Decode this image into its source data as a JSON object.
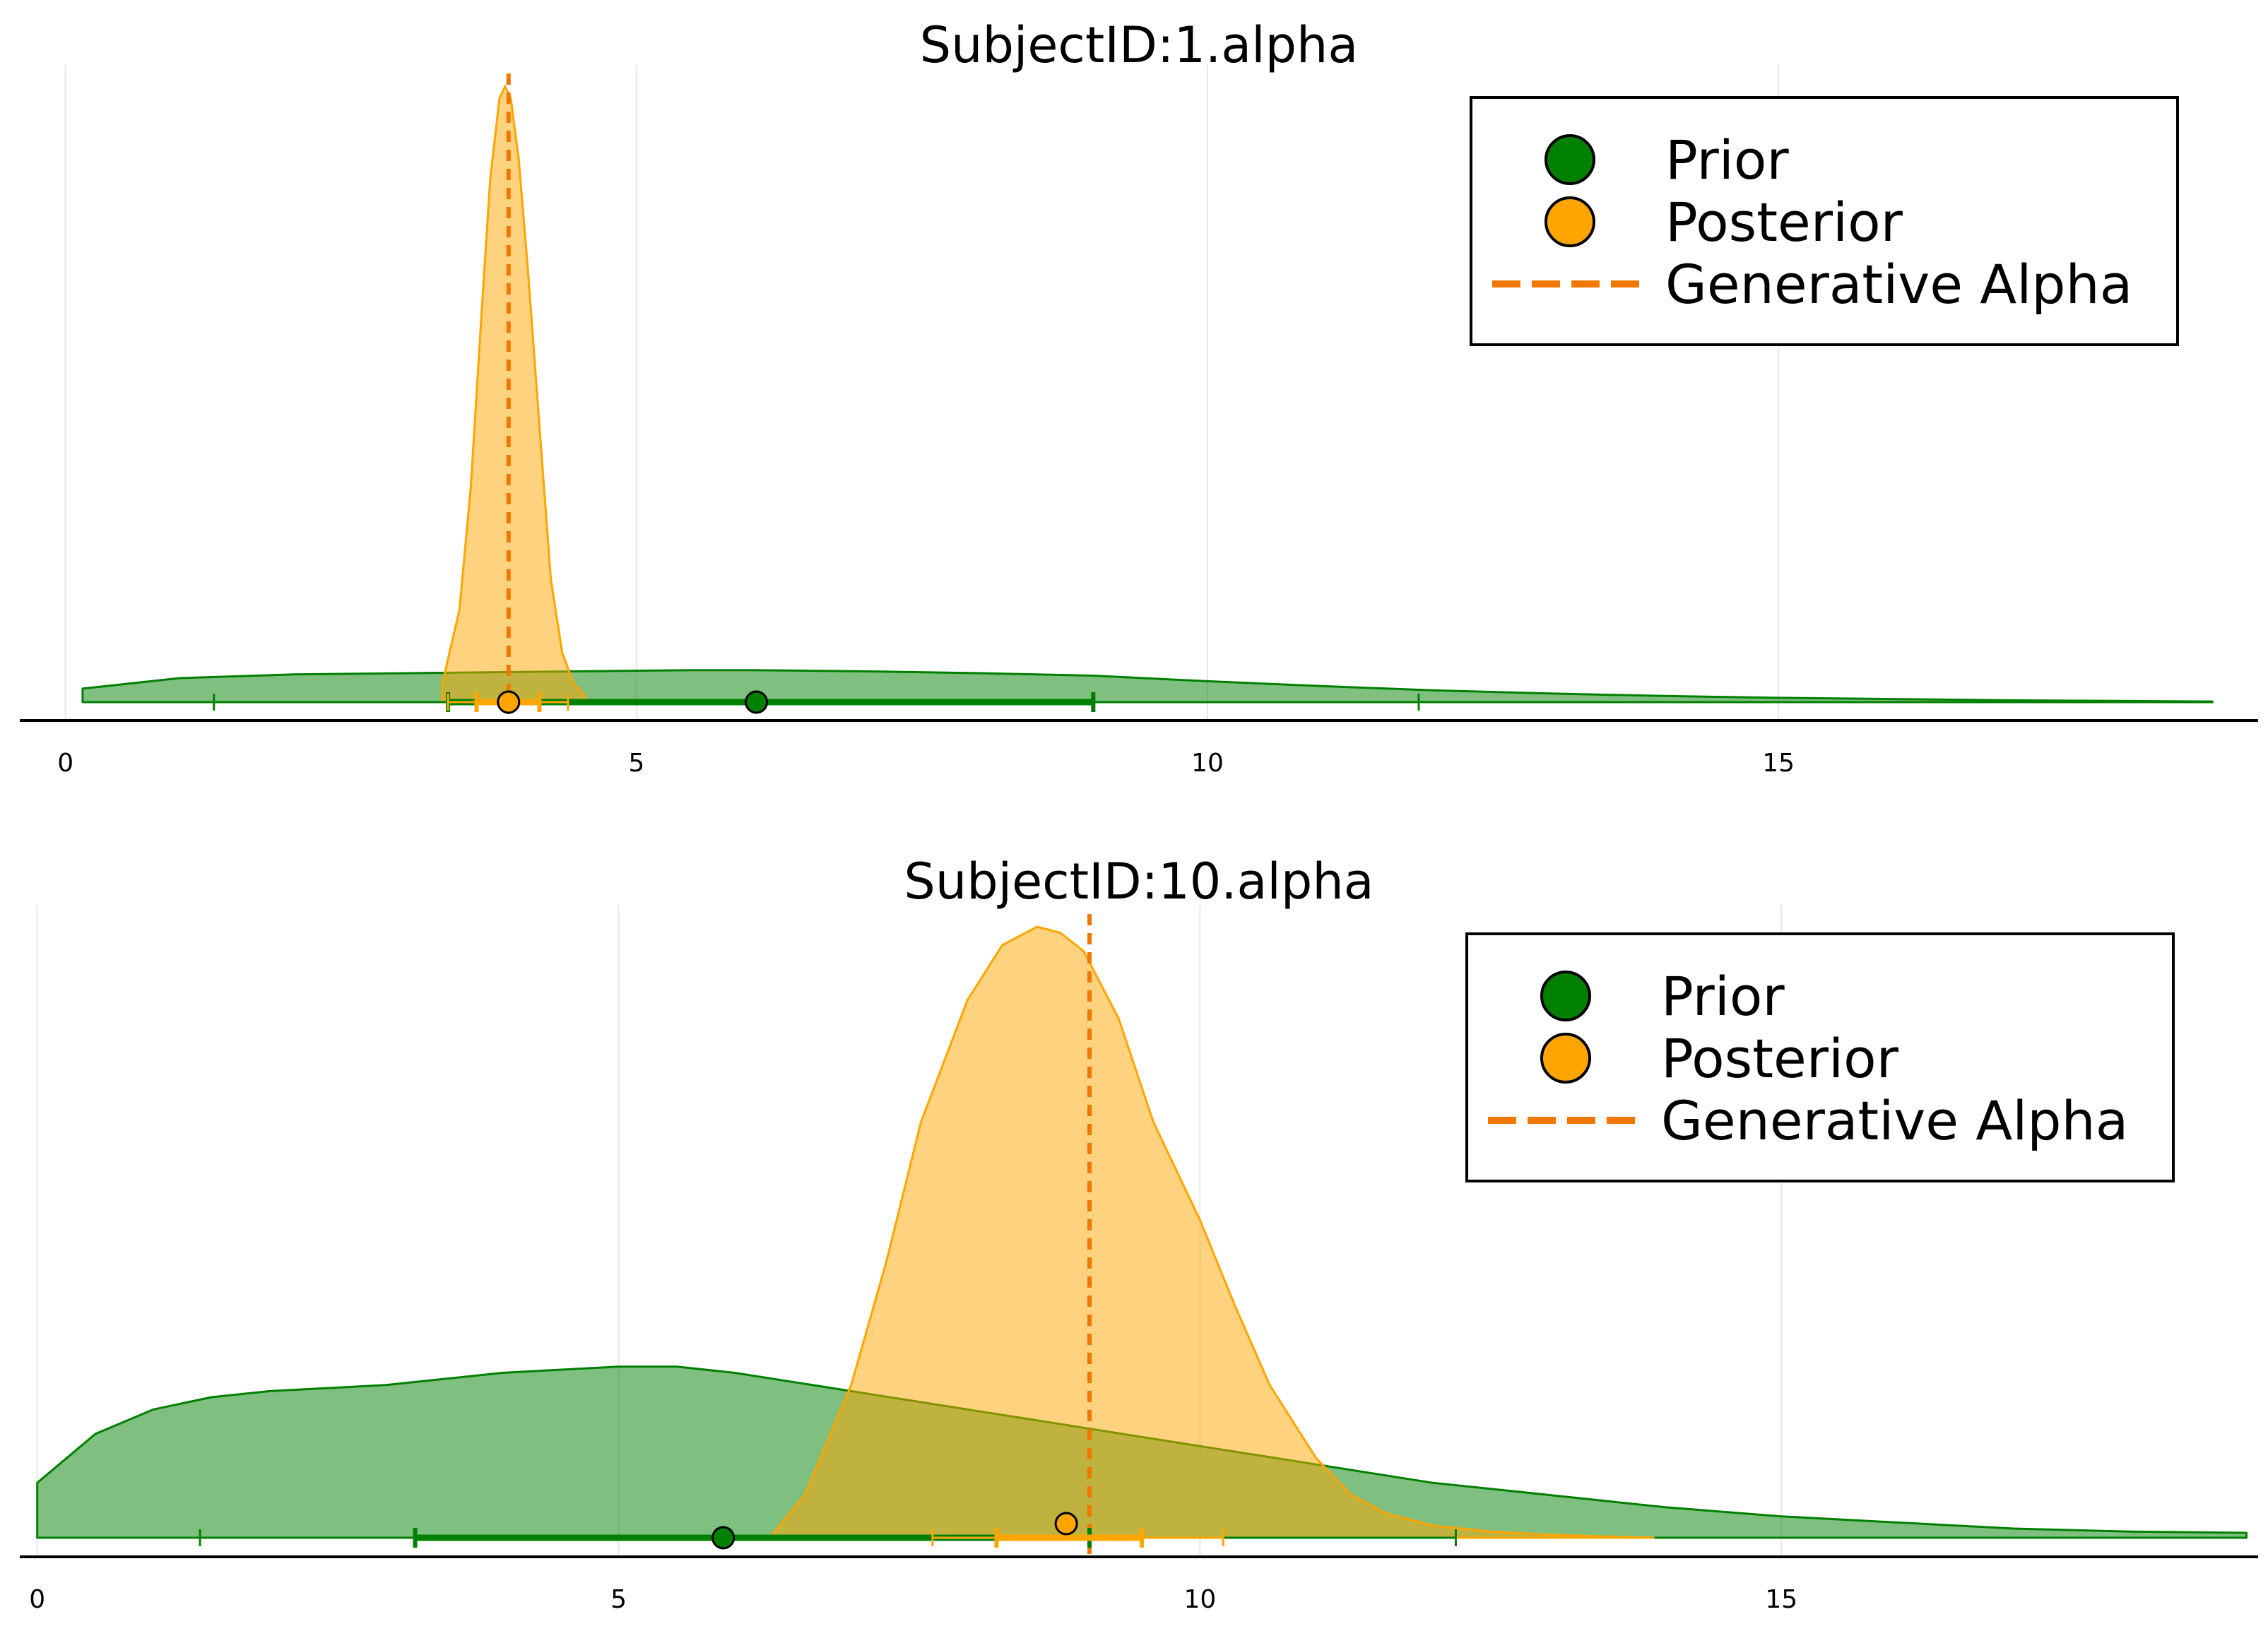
{
  "chart_data": [
    {
      "type": "area",
      "title": "SubjectID:1.alpha",
      "xlabel": "",
      "ylabel": "",
      "xlim": [
        -0.4,
        19.2
      ],
      "ylim": [
        0,
        1.0
      ],
      "x_ticks": [
        0,
        5,
        10,
        15
      ],
      "x_tick_labels": [
        "0",
        "5",
        "10",
        "15"
      ],
      "grid": true,
      "legend_position": "top-right",
      "legend": [
        {
          "label": "Prior",
          "marker": "circle",
          "color": "#008000"
        },
        {
          "label": "Posterior",
          "marker": "circle",
          "color": "#ffa500"
        },
        {
          "label": "Generative Alpha",
          "marker": "dashed-line",
          "color": "#f07800"
        }
      ],
      "series": [
        {
          "name": "Prior",
          "color": "#008000",
          "fill_opacity": 0.5,
          "density_x": [
            0.15,
            1.0,
            2.0,
            3.0,
            4.0,
            5.0,
            5.5,
            6.0,
            7.0,
            8.0,
            9.0,
            10.0,
            11.0,
            12.0,
            13.0,
            14.0,
            15.0,
            16.0,
            17.0,
            18.0,
            18.8
          ],
          "density_y": [
            0.022,
            0.039,
            0.045,
            0.047,
            0.049,
            0.051,
            0.052,
            0.052,
            0.05,
            0.047,
            0.043,
            0.034,
            0.026,
            0.019,
            0.014,
            0.01,
            0.007,
            0.005,
            0.003,
            0.002,
            0.001
          ],
          "point_estimate": 6.05,
          "inner_interval": [
            3.35,
            9.0
          ],
          "outer_interval": [
            1.3,
            11.85
          ]
        },
        {
          "name": "Posterior",
          "color": "#ffa500",
          "fill_opacity": 0.5,
          "density_x": [
            3.3,
            3.45,
            3.55,
            3.65,
            3.72,
            3.8,
            3.85,
            3.9,
            3.97,
            4.05,
            4.15,
            4.25,
            4.35,
            4.45,
            4.55
          ],
          "density_y": [
            0.03,
            0.15,
            0.35,
            0.65,
            0.85,
            0.98,
            1.0,
            0.98,
            0.88,
            0.7,
            0.45,
            0.2,
            0.08,
            0.03,
            0.01
          ],
          "point_estimate": 3.88,
          "inner_interval": [
            3.6,
            4.15
          ],
          "outer_interval": [
            3.35,
            4.4
          ]
        }
      ],
      "reference_line": {
        "name": "Generative Alpha",
        "x": 3.88,
        "style": "dashed",
        "color": "#f07800"
      }
    },
    {
      "type": "area",
      "title": "SubjectID:10.alpha",
      "xlabel": "",
      "ylabel": "",
      "xlim": [
        -0.15,
        19.1
      ],
      "ylim": [
        0,
        1.0
      ],
      "x_ticks": [
        0,
        5,
        10,
        15
      ],
      "x_tick_labels": [
        "0",
        "5",
        "10",
        "15"
      ],
      "grid": true,
      "legend_position": "top-right",
      "legend": [
        {
          "label": "Prior",
          "marker": "circle",
          "color": "#008000"
        },
        {
          "label": "Posterior",
          "marker": "circle",
          "color": "#ffa500"
        },
        {
          "label": "Generative Alpha",
          "marker": "dashed-line",
          "color": "#f07800"
        }
      ],
      "series": [
        {
          "name": "Prior",
          "color": "#008000",
          "fill_opacity": 0.5,
          "density_x": [
            0.0,
            0.5,
            1.0,
            1.5,
            2.0,
            3.0,
            4.0,
            5.0,
            5.5,
            6.0,
            7.0,
            8.0,
            9.0,
            10.0,
            11.0,
            12.0,
            13.0,
            14.0,
            15.0,
            16.0,
            17.0,
            18.0,
            19.0
          ],
          "density_y": [
            0.09,
            0.17,
            0.21,
            0.23,
            0.24,
            0.25,
            0.27,
            0.28,
            0.28,
            0.27,
            0.24,
            0.21,
            0.18,
            0.15,
            0.12,
            0.09,
            0.07,
            0.05,
            0.035,
            0.025,
            0.015,
            0.01,
            0.008
          ],
          "point_estimate": 5.9,
          "inner_interval": [
            3.25,
            9.05
          ],
          "outer_interval": [
            1.4,
            12.2
          ]
        },
        {
          "name": "Posterior",
          "color": "#ffa500",
          "fill_opacity": 0.5,
          "density_x": [
            6.3,
            6.6,
            7.0,
            7.3,
            7.6,
            8.0,
            8.3,
            8.6,
            8.8,
            9.0,
            9.3,
            9.6,
            10.0,
            10.3,
            10.6,
            11.0,
            11.3,
            11.6,
            12.0,
            12.5,
            13.0,
            13.5,
            13.9
          ],
          "density_y": [
            0.0,
            0.07,
            0.25,
            0.45,
            0.68,
            0.88,
            0.97,
            1.0,
            0.99,
            0.96,
            0.85,
            0.68,
            0.52,
            0.38,
            0.25,
            0.13,
            0.07,
            0.04,
            0.02,
            0.01,
            0.005,
            0.002,
            0.0
          ],
          "point_estimate": 8.85,
          "inner_interval": [
            8.25,
            9.5
          ],
          "outer_interval": [
            7.7,
            10.2
          ]
        }
      ],
      "reference_line": {
        "name": "Generative Alpha",
        "x": 9.05,
        "style": "dashed",
        "color": "#f07800"
      }
    }
  ]
}
